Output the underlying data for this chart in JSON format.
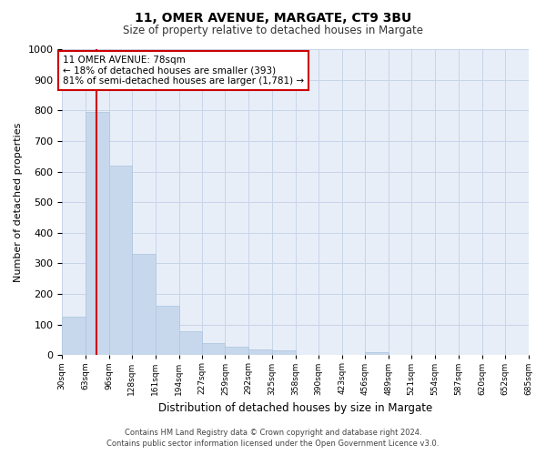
{
  "title": "11, OMER AVENUE, MARGATE, CT9 3BU",
  "subtitle": "Size of property relative to detached houses in Margate",
  "xlabel": "Distribution of detached houses by size in Margate",
  "ylabel": "Number of detached properties",
  "footer_line1": "Contains HM Land Registry data © Crown copyright and database right 2024.",
  "footer_line2": "Contains public sector information licensed under the Open Government Licence v3.0.",
  "annotation_title": "11 OMER AVENUE: 78sqm",
  "annotation_line1": "← 18% of detached houses are smaller (393)",
  "annotation_line2": "81% of semi-detached houses are larger (1,781) →",
  "red_line_x": 78,
  "bar_color": "#c8d8ec",
  "bar_edge_color": "#b0c8e0",
  "red_line_color": "#cc0000",
  "annotation_box_color": "#ffffff",
  "annotation_box_edge": "#cc0000",
  "grid_color": "#c8d4e8",
  "background_color": "#e8eef8",
  "ylim": [
    0,
    1000
  ],
  "yticks": [
    0,
    100,
    200,
    300,
    400,
    500,
    600,
    700,
    800,
    900,
    1000
  ],
  "bin_edges": [
    30,
    63,
    96,
    128,
    161,
    194,
    227,
    259,
    292,
    325,
    358,
    390,
    423,
    456,
    489,
    521,
    554,
    587,
    620,
    652,
    685
  ],
  "bar_heights": [
    125,
    795,
    620,
    330,
    163,
    78,
    40,
    28,
    20,
    15,
    0,
    0,
    0,
    10,
    0,
    0,
    0,
    0,
    0,
    0
  ],
  "tick_labels": [
    "30sqm",
    "63sqm",
    "96sqm",
    "128sqm",
    "161sqm",
    "194sqm",
    "227sqm",
    "259sqm",
    "292sqm",
    "325sqm",
    "358sqm",
    "390sqm",
    "423sqm",
    "456sqm",
    "489sqm",
    "521sqm",
    "554sqm",
    "587sqm",
    "620sqm",
    "652sqm",
    "685sqm"
  ]
}
